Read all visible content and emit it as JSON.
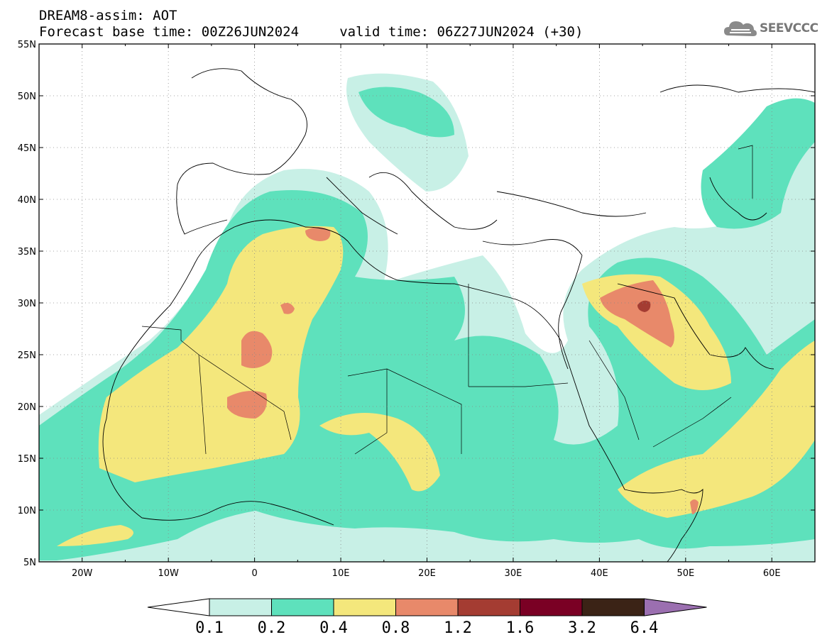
{
  "header": {
    "title_line1": "DREAM8-assim: AOT",
    "title_line2": "Forecast base time: 00Z26JUN2024     valid time: 06Z27JUN2024 (+30)"
  },
  "logo": {
    "text": "SEEVCCC",
    "icon": "cloud-icon"
  },
  "map": {
    "lat_labels": [
      "55N",
      "50N",
      "45N",
      "40N",
      "35N",
      "30N",
      "25N",
      "20N",
      "15N",
      "10N",
      "5N"
    ],
    "lon_labels": [
      "20W",
      "10W",
      "0",
      "10E",
      "20E",
      "30E",
      "40E",
      "50E",
      "60E"
    ],
    "lat_range": [
      5,
      55
    ],
    "lon_range": [
      -25,
      65
    ]
  },
  "colorbar": {
    "labels": [
      "0.1",
      "0.2",
      "0.4",
      "0.8",
      "1.2",
      "1.6",
      "3.2",
      "6.4"
    ],
    "colors": [
      "#c8f0e6",
      "#5ee1bc",
      "#f4e77c",
      "#e8896a",
      "#a43c32",
      "#7a0024",
      "#3b2316",
      "#9b6fb0"
    ]
  },
  "colors": {
    "c1": "#c8f0e6",
    "c2": "#5ee1bc",
    "c3": "#f4e77c",
    "c4": "#e8896a",
    "c5": "#a43c32",
    "c6": "#7a0024"
  }
}
